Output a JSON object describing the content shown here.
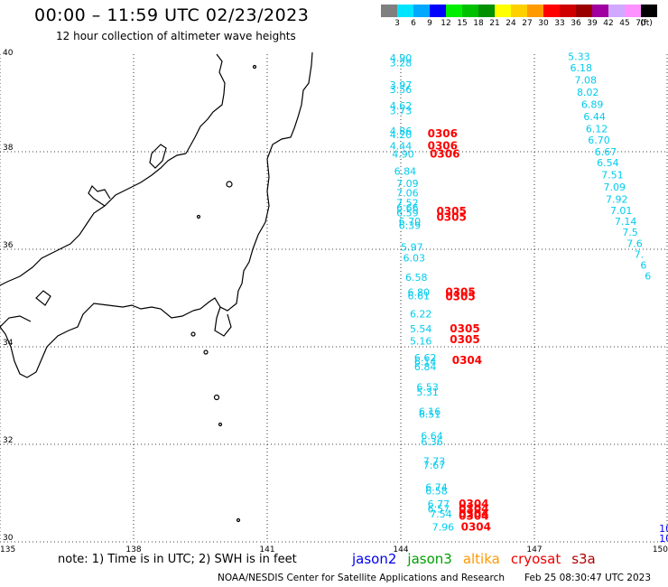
{
  "header": {
    "title": "00:00 – 11:59 UTC 02/23/2023",
    "subtitle": "12 hour collection of altimeter wave heights"
  },
  "color_scale": {
    "unit_label": "(ft)",
    "bins": [
      {
        "label": "3",
        "color": "#7f7f7f"
      },
      {
        "label": "6",
        "color": "#00e5ff"
      },
      {
        "label": "9",
        "color": "#00a8ff"
      },
      {
        "label": "12",
        "color": "#0000ff"
      },
      {
        "label": "15",
        "color": "#00ee00"
      },
      {
        "label": "18",
        "color": "#00c000"
      },
      {
        "label": "21",
        "color": "#009000"
      },
      {
        "label": "24",
        "color": "#ffff00"
      },
      {
        "label": "27",
        "color": "#ffd000"
      },
      {
        "label": "30",
        "color": "#ff9a00"
      },
      {
        "label": "33",
        "color": "#ff0000"
      },
      {
        "label": "36",
        "color": "#d00000"
      },
      {
        "label": "39",
        "color": "#9a0000"
      },
      {
        "label": "42",
        "color": "#a000a0"
      },
      {
        "label": "45",
        "color": "#d0a8ff"
      },
      {
        "label": "70",
        "color": "#ff90ff"
      },
      {
        "label": "",
        "color": "#000000"
      }
    ]
  },
  "map": {
    "lon_range": [
      135,
      150
    ],
    "lat_range": [
      30,
      40
    ],
    "lon_ticks": [
      "135",
      "138",
      "141",
      "144",
      "147",
      "150"
    ],
    "lat_ticks": [
      "40",
      "38",
      "36",
      "34",
      "32",
      "30"
    ],
    "grid": "dotted"
  },
  "wave_heights": {
    "track_a": {
      "color": "#00ccee",
      "points": [
        {
          "lon": 144.0,
          "lat": 39.85,
          "v": "4.90"
        },
        {
          "lon": 144.0,
          "lat": 39.75,
          "v": "3.28"
        },
        {
          "lon": 144.0,
          "lat": 39.3,
          "v": "3.97"
        },
        {
          "lon": 144.0,
          "lat": 39.2,
          "v": "3.56"
        },
        {
          "lon": 144.0,
          "lat": 38.87,
          "v": "4.62"
        },
        {
          "lon": 144.0,
          "lat": 38.77,
          "v": "3.73"
        },
        {
          "lon": 144.0,
          "lat": 38.35,
          "v": "4.86"
        },
        {
          "lon": 144.0,
          "lat": 38.28,
          "v": "4.20"
        },
        {
          "lon": 144.0,
          "lat": 38.05,
          "v": "4.44"
        },
        {
          "lon": 144.05,
          "lat": 37.88,
          "v": "4.90"
        },
        {
          "lon": 144.1,
          "lat": 37.53,
          "v": "6.84"
        },
        {
          "lon": 144.15,
          "lat": 37.28,
          "v": "7.09"
        },
        {
          "lon": 144.15,
          "lat": 37.08,
          "v": "7.06"
        },
        {
          "lon": 144.15,
          "lat": 36.88,
          "v": "7.52"
        },
        {
          "lon": 144.15,
          "lat": 36.78,
          "v": "6.66"
        },
        {
          "lon": 144.15,
          "lat": 36.68,
          "v": "6.59"
        },
        {
          "lon": 144.2,
          "lat": 36.5,
          "v": "6.70"
        },
        {
          "lon": 144.2,
          "lat": 36.42,
          "v": "6.39"
        },
        {
          "lon": 144.25,
          "lat": 35.97,
          "v": "5.97"
        },
        {
          "lon": 144.3,
          "lat": 35.75,
          "v": "6.03"
        },
        {
          "lon": 144.35,
          "lat": 35.35,
          "v": "6.58"
        },
        {
          "lon": 144.4,
          "lat": 35.05,
          "v": "6.80"
        },
        {
          "lon": 144.4,
          "lat": 34.97,
          "v": "6.61"
        },
        {
          "lon": 144.45,
          "lat": 34.6,
          "v": "6.22"
        },
        {
          "lon": 144.45,
          "lat": 34.3,
          "v": "5.54"
        },
        {
          "lon": 144.45,
          "lat": 34.05,
          "v": "5.16"
        },
        {
          "lon": 144.55,
          "lat": 33.7,
          "v": "6.62"
        },
        {
          "lon": 144.55,
          "lat": 33.62,
          "v": "6.14"
        },
        {
          "lon": 144.55,
          "lat": 33.52,
          "v": "6.84"
        },
        {
          "lon": 144.6,
          "lat": 33.1,
          "v": "6.53"
        },
        {
          "lon": 144.6,
          "lat": 33.0,
          "v": "5.31"
        },
        {
          "lon": 144.65,
          "lat": 32.6,
          "v": "6.16"
        },
        {
          "lon": 144.65,
          "lat": 32.55,
          "v": "6.51"
        },
        {
          "lon": 144.7,
          "lat": 32.1,
          "v": "6.64"
        },
        {
          "lon": 144.7,
          "lat": 31.98,
          "v": "6.36"
        },
        {
          "lon": 144.75,
          "lat": 31.58,
          "v": "7.73"
        },
        {
          "lon": 144.75,
          "lat": 31.5,
          "v": "7.67"
        },
        {
          "lon": 144.8,
          "lat": 31.05,
          "v": "6.74"
        },
        {
          "lon": 144.8,
          "lat": 30.97,
          "v": "6.58"
        },
        {
          "lon": 144.85,
          "lat": 30.7,
          "v": "6.77"
        },
        {
          "lon": 144.85,
          "lat": 30.6,
          "v": "6.57"
        },
        {
          "lon": 144.9,
          "lat": 30.5,
          "v": "7.54"
        },
        {
          "lon": 144.95,
          "lat": 30.23,
          "v": "7.96"
        }
      ]
    },
    "track_b": {
      "color": "#00ccee",
      "points": [
        {
          "lon": 148.0,
          "lat": 39.88,
          "v": "5.33"
        },
        {
          "lon": 148.05,
          "lat": 39.65,
          "v": "6.18"
        },
        {
          "lon": 148.15,
          "lat": 39.4,
          "v": "7.08"
        },
        {
          "lon": 148.2,
          "lat": 39.15,
          "v": "8.02"
        },
        {
          "lon": 148.3,
          "lat": 38.9,
          "v": "6.89"
        },
        {
          "lon": 148.35,
          "lat": 38.65,
          "v": "6.44"
        },
        {
          "lon": 148.4,
          "lat": 38.4,
          "v": "6.12"
        },
        {
          "lon": 148.45,
          "lat": 38.17,
          "v": "6.70"
        },
        {
          "lon": 148.6,
          "lat": 37.93,
          "v": "6.67"
        },
        {
          "lon": 148.65,
          "lat": 37.7,
          "v": "6.54"
        },
        {
          "lon": 148.75,
          "lat": 37.45,
          "v": "7.51"
        },
        {
          "lon": 148.8,
          "lat": 37.2,
          "v": "7.09"
        },
        {
          "lon": 148.85,
          "lat": 36.95,
          "v": "7.92"
        },
        {
          "lon": 148.95,
          "lat": 36.72,
          "v": "7.01"
        },
        {
          "lon": 149.05,
          "lat": 36.5,
          "v": "7.14"
        },
        {
          "lon": 149.15,
          "lat": 36.28,
          "v": "7.5"
        },
        {
          "lon": 149.25,
          "lat": 36.05,
          "v": "7.6"
        },
        {
          "lon": 149.35,
          "lat": 35.82,
          "v": "7."
        },
        {
          "lon": 149.45,
          "lat": 35.6,
          "v": "6"
        },
        {
          "lon": 149.55,
          "lat": 35.38,
          "v": "6"
        }
      ]
    },
    "times": {
      "color": "#ff0000",
      "points": [
        {
          "lon": 144.6,
          "lat": 38.3,
          "v": "0306"
        },
        {
          "lon": 144.6,
          "lat": 38.05,
          "v": "0306"
        },
        {
          "lon": 144.65,
          "lat": 37.88,
          "v": "0306"
        },
        {
          "lon": 144.8,
          "lat": 36.7,
          "v": "0305"
        },
        {
          "lon": 144.8,
          "lat": 36.58,
          "v": "0305"
        },
        {
          "lon": 145.0,
          "lat": 35.05,
          "v": "0305"
        },
        {
          "lon": 145.0,
          "lat": 34.95,
          "v": "0305"
        },
        {
          "lon": 145.1,
          "lat": 34.3,
          "v": "0305"
        },
        {
          "lon": 145.1,
          "lat": 34.07,
          "v": "0305"
        },
        {
          "lon": 145.15,
          "lat": 33.65,
          "v": "0304"
        },
        {
          "lon": 145.3,
          "lat": 30.7,
          "v": "0304"
        },
        {
          "lon": 145.3,
          "lat": 30.6,
          "v": "0304"
        },
        {
          "lon": 145.3,
          "lat": 30.5,
          "v": "0304"
        },
        {
          "lon": 145.3,
          "lat": 30.45,
          "v": "0304"
        },
        {
          "lon": 145.35,
          "lat": 30.23,
          "v": "0304"
        }
      ]
    },
    "edge": {
      "color": "#0000ff",
      "points": [
        {
          "lon": 149.8,
          "lat": 30.2,
          "v": "10"
        },
        {
          "lon": 149.8,
          "lat": 30.0,
          "v": "10"
        }
      ]
    }
  },
  "footer": {
    "note": "note: 1) Time is in UTC; 2) SWH is in feet",
    "missions": [
      {
        "name": "jason2",
        "color": "#0000ee"
      },
      {
        "name": "jason3",
        "color": "#00a000"
      },
      {
        "name": "altika",
        "color": "#ff9900"
      },
      {
        "name": "cryosat",
        "color": "#ee0000"
      },
      {
        "name": "s3a",
        "color": "#b00000"
      }
    ],
    "credit": "NOAA/NESDIS Center for Satellite Applications and Research",
    "timestamp": "Feb 25 08:30:47 UTC 2023"
  }
}
